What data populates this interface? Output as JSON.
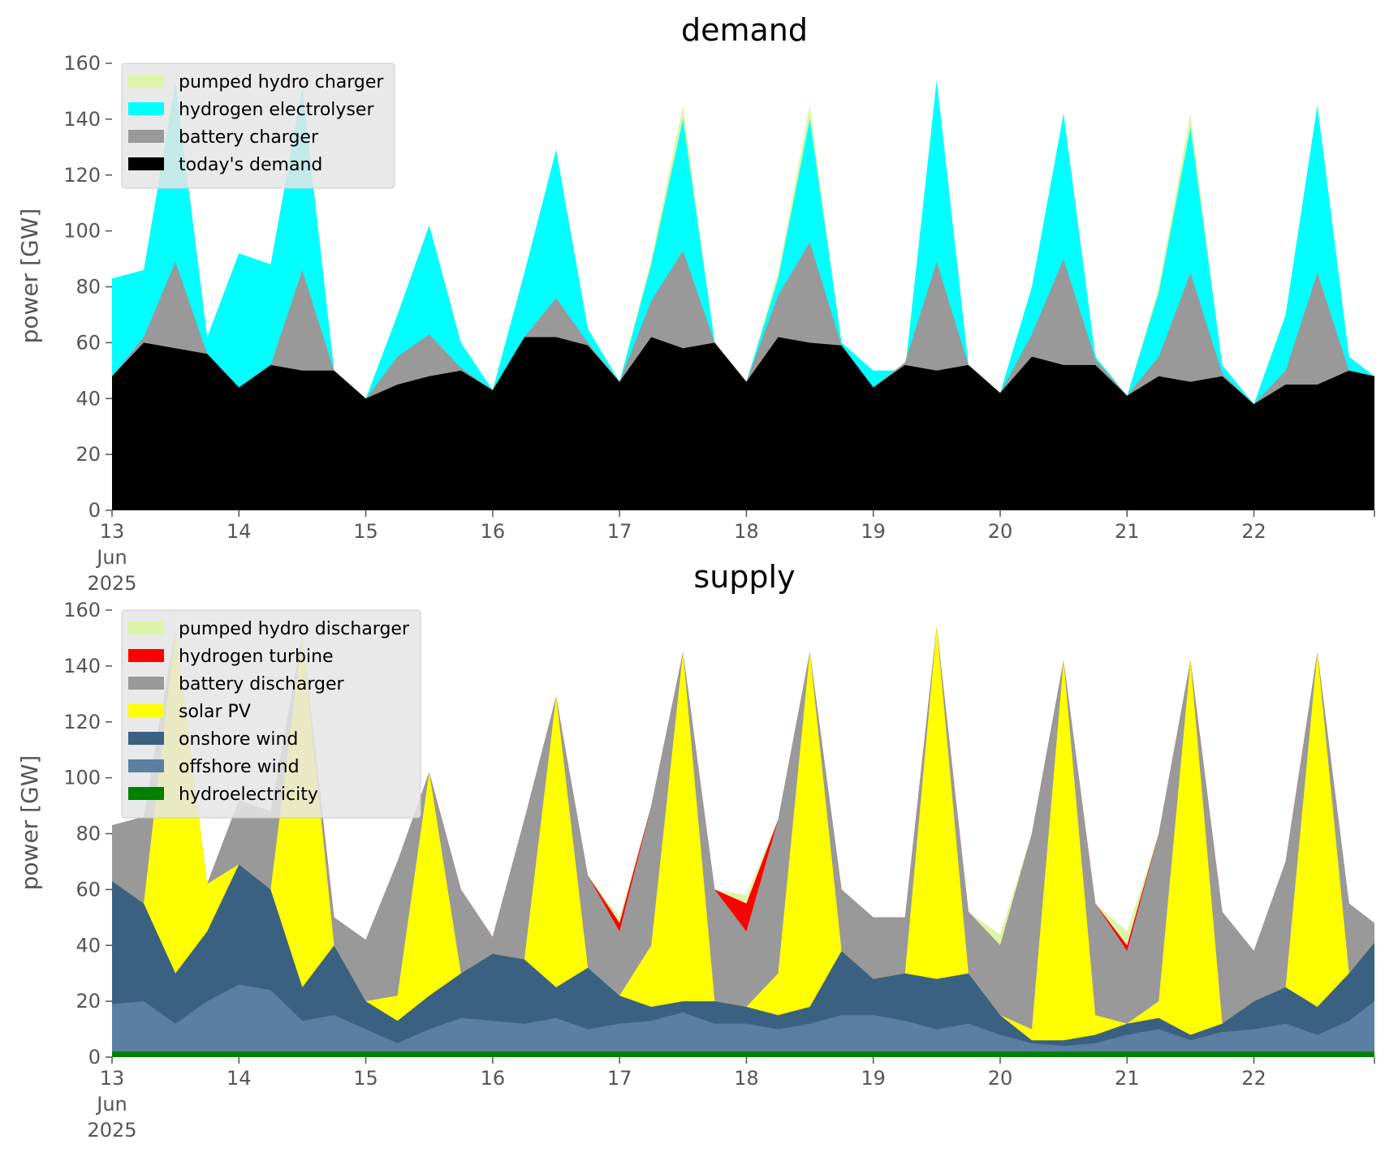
{
  "chart_data": [
    {
      "type": "area",
      "title": "demand",
      "ylabel": "power [GW]",
      "xlabel": "",
      "ylim": [
        0,
        160
      ],
      "yticks": [
        0,
        20,
        40,
        60,
        80,
        100,
        120,
        140,
        160
      ],
      "x_tick_labels": [
        "13",
        "14",
        "15",
        "16",
        "17",
        "18",
        "19",
        "20",
        "21",
        "22"
      ],
      "x_tick_first_extra": [
        "Jun",
        "2025"
      ],
      "legend_placement": "top-left",
      "stacked": false,
      "grid": false,
      "x_days": [
        13.0,
        13.25,
        13.5,
        13.75,
        14.0,
        14.25,
        14.5,
        14.75,
        15.0,
        15.25,
        15.5,
        15.75,
        16.0,
        16.25,
        16.5,
        16.75,
        17.0,
        17.25,
        17.5,
        17.75,
        18.0,
        18.25,
        18.5,
        18.75,
        19.0,
        19.25,
        19.5,
        19.75,
        20.0,
        20.25,
        20.5,
        20.75,
        21.0,
        21.25,
        21.5,
        21.75,
        22.0,
        22.25,
        22.5,
        22.75,
        22.95
      ],
      "series": [
        {
          "name": "pumped hydro charger",
          "color": "#ddf5a8",
          "values": [
            83,
            86,
            153,
            62,
            92,
            88,
            151,
            50,
            40,
            70,
            102,
            60,
            43,
            85,
            129,
            65,
            46,
            90,
            145,
            60,
            46,
            85,
            145,
            60,
            50,
            50,
            154,
            52,
            42,
            80,
            142,
            55,
            41,
            80,
            142,
            52,
            38,
            70,
            145,
            55,
            48
          ]
        },
        {
          "name": "hydrogen electrolyser",
          "color": "#00ffff",
          "values": [
            83,
            86,
            153,
            62,
            92,
            88,
            151,
            50,
            40,
            70,
            102,
            60,
            43,
            85,
            129,
            65,
            46,
            88,
            140,
            60,
            46,
            83,
            140,
            60,
            50,
            50,
            154,
            52,
            42,
            80,
            142,
            55,
            41,
            78,
            137,
            52,
            38,
            70,
            145,
            55,
            48
          ]
        },
        {
          "name": "battery charger",
          "color": "#999999",
          "values": [
            48,
            62,
            89,
            56,
            44,
            52,
            86,
            50,
            40,
            55,
            63,
            51,
            43,
            62,
            76,
            60,
            46,
            75,
            93,
            60,
            46,
            77,
            96,
            59,
            44,
            53,
            89,
            52,
            42,
            63,
            90,
            54,
            41,
            55,
            85,
            49,
            38,
            50,
            85,
            50,
            48
          ]
        },
        {
          "name": "today's demand",
          "color": "#000000",
          "values": [
            48,
            60,
            58,
            56,
            44,
            52,
            50,
            50,
            40,
            45,
            48,
            50,
            43,
            62,
            62,
            59,
            46,
            62,
            58,
            60,
            46,
            62,
            60,
            59,
            44,
            52,
            50,
            52,
            42,
            55,
            52,
            52,
            41,
            48,
            46,
            48,
            38,
            45,
            45,
            50,
            48
          ]
        }
      ]
    },
    {
      "type": "area",
      "title": "supply",
      "ylabel": "power [GW]",
      "xlabel": "",
      "ylim": [
        0,
        160
      ],
      "yticks": [
        0,
        20,
        40,
        60,
        80,
        100,
        120,
        140,
        160
      ],
      "x_tick_labels": [
        "13",
        "14",
        "15",
        "16",
        "17",
        "18",
        "19",
        "20",
        "21",
        "22"
      ],
      "x_tick_first_extra": [
        "Jun",
        "2025"
      ],
      "legend_placement": "top-left",
      "stacked": false,
      "grid": false,
      "x_days": [
        13.0,
        13.25,
        13.5,
        13.75,
        14.0,
        14.25,
        14.5,
        14.75,
        15.0,
        15.25,
        15.5,
        15.75,
        16.0,
        16.25,
        16.5,
        16.75,
        17.0,
        17.25,
        17.5,
        17.75,
        18.0,
        18.25,
        18.5,
        18.75,
        19.0,
        19.25,
        19.5,
        19.75,
        20.0,
        20.25,
        20.5,
        20.75,
        21.0,
        21.25,
        21.5,
        21.75,
        22.0,
        22.25,
        22.5,
        22.75,
        22.95
      ],
      "series": [
        {
          "name": "pumped hydro discharger",
          "color": "#ddf5a8",
          "values": [
            83,
            86,
            153,
            62,
            92,
            88,
            151,
            50,
            42,
            70,
            102,
            60,
            43,
            85,
            129,
            65,
            50,
            90,
            145,
            60,
            58,
            85,
            145,
            60,
            50,
            50,
            154,
            52,
            44,
            80,
            142,
            55,
            45,
            80,
            142,
            52,
            38,
            70,
            145,
            55,
            48
          ]
        },
        {
          "name": "hydrogen turbine",
          "color": "#ff0000",
          "values": [
            83,
            86,
            153,
            62,
            92,
            88,
            151,
            50,
            42,
            70,
            102,
            60,
            43,
            85,
            129,
            65,
            48,
            90,
            145,
            60,
            55,
            85,
            145,
            60,
            50,
            50,
            154,
            52,
            40,
            80,
            142,
            55,
            40,
            80,
            142,
            52,
            38,
            70,
            145,
            55,
            48
          ]
        },
        {
          "name": "battery discharger",
          "color": "#999999",
          "values": [
            83,
            86,
            153,
            62,
            92,
            88,
            151,
            50,
            42,
            70,
            102,
            60,
            43,
            85,
            129,
            65,
            45,
            90,
            145,
            60,
            45,
            85,
            145,
            60,
            50,
            50,
            154,
            52,
            40,
            80,
            142,
            55,
            38,
            80,
            142,
            52,
            38,
            70,
            145,
            55,
            48
          ]
        },
        {
          "name": "solar PV",
          "color": "#ffff00",
          "values": [
            63,
            55,
            153,
            62,
            69,
            60,
            151,
            40,
            20,
            22,
            102,
            30,
            37,
            35,
            129,
            32,
            22,
            40,
            145,
            20,
            18,
            30,
            145,
            38,
            28,
            30,
            154,
            30,
            15,
            10,
            142,
            15,
            12,
            20,
            142,
            12,
            20,
            25,
            145,
            30,
            41
          ]
        },
        {
          "name": "onshore wind",
          "color": "#3b6182",
          "values": [
            63,
            55,
            30,
            45,
            69,
            60,
            25,
            40,
            20,
            13,
            22,
            30,
            37,
            35,
            25,
            32,
            22,
            18,
            20,
            20,
            18,
            15,
            18,
            38,
            28,
            30,
            28,
            30,
            15,
            6,
            6,
            8,
            12,
            14,
            8,
            12,
            20,
            25,
            18,
            30,
            41
          ]
        },
        {
          "name": "offshore wind",
          "color": "#5a7fa2",
          "values": [
            19,
            20,
            12,
            20,
            26,
            24,
            13,
            15,
            10,
            5,
            10,
            14,
            13,
            12,
            14,
            10,
            12,
            13,
            16,
            12,
            12,
            10,
            12,
            15,
            15,
            13,
            10,
            12,
            8,
            5,
            4,
            5,
            8,
            10,
            6,
            9,
            10,
            12,
            8,
            13,
            20
          ]
        },
        {
          "name": "hydroelectricity",
          "color": "#008000",
          "values": [
            2,
            2,
            2,
            2,
            2,
            2,
            2,
            2,
            2,
            2,
            2,
            2,
            2,
            2,
            2,
            2,
            2,
            2,
            2,
            2,
            2,
            2,
            2,
            2,
            2,
            2,
            2,
            2,
            2,
            2,
            2,
            2,
            2,
            2,
            2,
            2,
            2,
            2,
            2,
            2,
            2
          ]
        }
      ]
    }
  ]
}
